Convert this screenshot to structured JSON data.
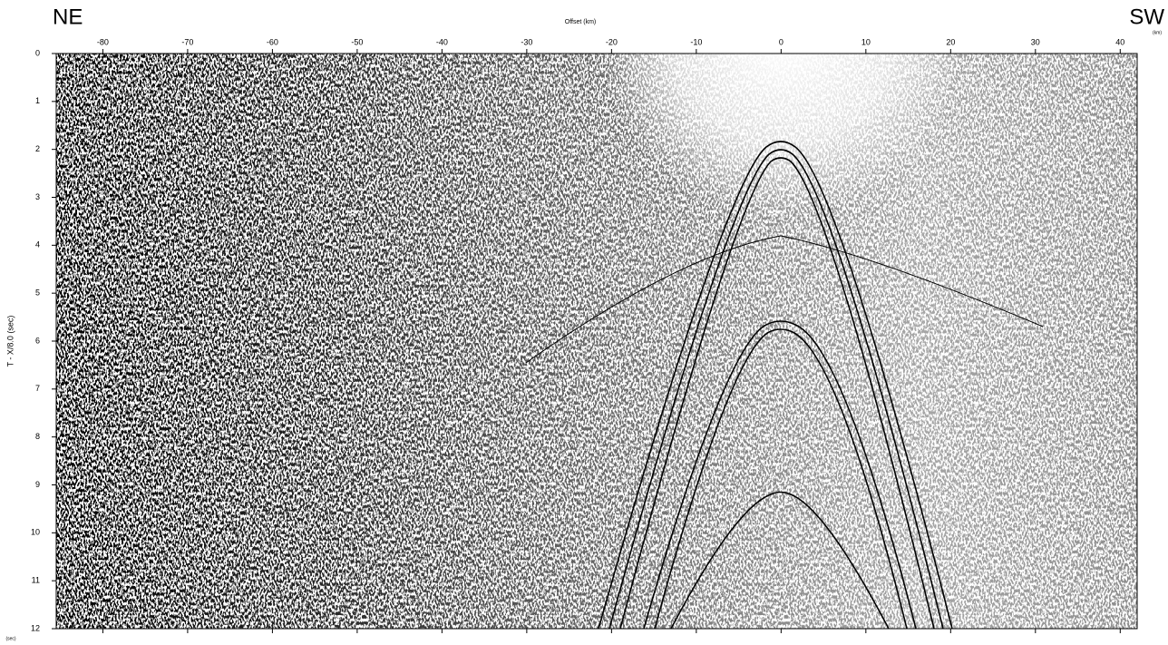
{
  "chart_data": {
    "type": "seismic-section",
    "title_left": "NE",
    "title_right": "SW",
    "xlabel": "Offset (km)",
    "xunit": "(km)",
    "ylabel": "T - X/8.0 (sec)",
    "yunit": "(sec)",
    "xlim": [
      -85.5,
      42
    ],
    "xticks": [
      -80,
      -70,
      -60,
      -50,
      -40,
      -30,
      -20,
      -10,
      0,
      10,
      20,
      30,
      40
    ],
    "ylim": [
      0,
      12
    ],
    "yticks": [
      0,
      1,
      2,
      3,
      4,
      5,
      6,
      7,
      8,
      9,
      10,
      11,
      12
    ],
    "y_inverted": true
  }
}
